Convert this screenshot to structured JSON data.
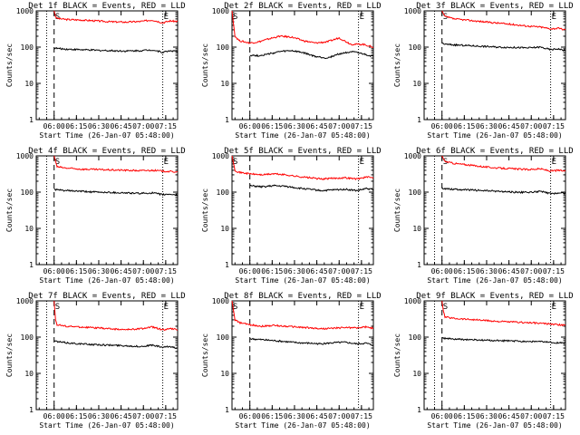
{
  "chart_data": [
    {
      "type": "line",
      "title": "Det 1f BLACK = Events, RED = LLD",
      "xlabel": "Start Time (26-Jan-07 05:48:00)",
      "ylabel": "Counts/sec",
      "y_scale": "log",
      "ylim": [
        1,
        1000
      ],
      "xlim": [
        0,
        95
      ],
      "x_tick_labels": [
        "06:00",
        "06:15",
        "06:30",
        "06:45",
        "07:00",
        "07:15"
      ],
      "y_tick_labels": [
        "1",
        "10",
        "100",
        "1000"
      ],
      "markers": {
        "S": 12,
        "E": 85
      },
      "dotted_lines_min": [
        7,
        85
      ],
      "dashed_line_min": 12,
      "grid": false,
      "legend": "none",
      "series": [
        {
          "color": "#ff0000",
          "x": [
            12,
            13,
            14,
            20,
            30,
            40,
            50,
            60,
            70,
            78,
            85,
            90,
            95
          ],
          "values": [
            1000,
            700,
            620,
            580,
            560,
            530,
            500,
            490,
            510,
            560,
            470,
            530,
            510
          ]
        },
        {
          "color": "#000000",
          "x": [
            12,
            14,
            20,
            30,
            40,
            50,
            60,
            70,
            78,
            85,
            90,
            95
          ],
          "values": [
            95,
            92,
            88,
            85,
            82,
            80,
            78,
            80,
            84,
            72,
            80,
            76
          ]
        }
      ]
    },
    {
      "type": "line",
      "title": "Det 2f BLACK = Events, RED = LLD",
      "xlabel": "Start Time (26-Jan-07 05:48:00)",
      "ylabel": "Counts/sec",
      "y_scale": "log",
      "ylim": [
        1,
        1000
      ],
      "xlim": [
        0,
        95
      ],
      "x_tick_labels": [
        "06:00",
        "06:15",
        "06:30",
        "06:45",
        "07:00",
        "07:15"
      ],
      "y_tick_labels": [
        "1",
        "10",
        "100",
        "1000"
      ],
      "markers": {
        "S": 0,
        "E": 85
      },
      "dotted_lines_min": [
        0,
        85
      ],
      "dashed_line_min": 12,
      "grid": false,
      "legend": "none",
      "series": [
        {
          "color": "#ff0000",
          "x": [
            0,
            2,
            5,
            12,
            18,
            25,
            32,
            40,
            48,
            56,
            64,
            72,
            80,
            88,
            95
          ],
          "values": [
            1000,
            200,
            150,
            130,
            140,
            170,
            200,
            190,
            150,
            130,
            140,
            180,
            120,
            120,
            100
          ]
        },
        {
          "color": "#000000",
          "x": [
            12,
            18,
            25,
            32,
            40,
            48,
            56,
            64,
            72,
            80,
            88,
            95
          ],
          "values": [
            60,
            58,
            65,
            75,
            80,
            70,
            55,
            50,
            65,
            75,
            65,
            55
          ]
        }
      ]
    },
    {
      "type": "line",
      "title": "Det 3f BLACK = Events, RED = LLD",
      "xlabel": "Start Time (26-Jan-07 05:48:00)",
      "ylabel": "Counts/sec",
      "y_scale": "log",
      "ylim": [
        1,
        1000
      ],
      "xlim": [
        0,
        95
      ],
      "x_tick_labels": [
        "06:00",
        "06:15",
        "06:30",
        "06:45",
        "07:00",
        "07:15"
      ],
      "y_tick_labels": [
        "1",
        "10",
        "100",
        "1000"
      ],
      "markers": {
        "S": 12,
        "E": 85
      },
      "dotted_lines_min": [
        7,
        85
      ],
      "dashed_line_min": 12,
      "grid": false,
      "legend": "none",
      "series": [
        {
          "color": "#ff0000",
          "x": [
            12,
            14,
            20,
            30,
            40,
            50,
            60,
            70,
            78,
            85,
            90,
            95
          ],
          "values": [
            1000,
            700,
            600,
            550,
            500,
            460,
            420,
            380,
            360,
            320,
            330,
            300
          ]
        },
        {
          "color": "#000000",
          "x": [
            12,
            14,
            20,
            30,
            40,
            50,
            60,
            70,
            78,
            85,
            90,
            95
          ],
          "values": [
            130,
            120,
            115,
            110,
            105,
            100,
            98,
            95,
            100,
            85,
            90,
            80
          ]
        }
      ]
    },
    {
      "type": "line",
      "title": "Det 4f BLACK = Events, RED = LLD",
      "xlabel": "Start Time (26-Jan-07 05:48:00)",
      "ylabel": "Counts/sec",
      "y_scale": "log",
      "ylim": [
        1,
        1000
      ],
      "xlim": [
        0,
        95
      ],
      "x_tick_labels": [
        "06:00",
        "06:15",
        "06:30",
        "06:45",
        "07:00",
        "07:15"
      ],
      "y_tick_labels": [
        "1",
        "10",
        "100",
        "1000"
      ],
      "markers": {
        "S": 12,
        "E": 85
      },
      "dotted_lines_min": [
        7,
        85
      ],
      "dashed_line_min": 12,
      "grid": false,
      "legend": "none",
      "series": [
        {
          "color": "#ff0000",
          "x": [
            12,
            14,
            20,
            30,
            40,
            50,
            60,
            70,
            78,
            85,
            90,
            95
          ],
          "values": [
            1000,
            500,
            460,
            430,
            420,
            410,
            400,
            390,
            400,
            380,
            370,
            360
          ]
        },
        {
          "color": "#000000",
          "x": [
            12,
            14,
            20,
            30,
            40,
            50,
            60,
            70,
            78,
            85,
            90,
            95
          ],
          "values": [
            120,
            115,
            110,
            105,
            100,
            98,
            95,
            92,
            95,
            85,
            88,
            82
          ]
        }
      ]
    },
    {
      "type": "line",
      "title": "Det 5f BLACK = Events, RED = LLD",
      "xlabel": "Start Time (26-Jan-07 05:48:00)",
      "ylabel": "Counts/sec",
      "y_scale": "log",
      "ylim": [
        1,
        1000
      ],
      "xlim": [
        0,
        95
      ],
      "x_tick_labels": [
        "06:00",
        "06:15",
        "06:30",
        "06:45",
        "07:00",
        "07:15"
      ],
      "y_tick_labels": [
        "1",
        "10",
        "100",
        "1000"
      ],
      "markers": {
        "S": 0,
        "E": 85
      },
      "dotted_lines_min": [
        0,
        85
      ],
      "dashed_line_min": 12,
      "grid": false,
      "legend": "none",
      "series": [
        {
          "color": "#ff0000",
          "x": [
            0,
            2,
            5,
            12,
            20,
            28,
            36,
            44,
            52,
            60,
            68,
            76,
            84,
            90,
            95
          ],
          "values": [
            1000,
            400,
            350,
            320,
            300,
            320,
            300,
            270,
            250,
            230,
            240,
            250,
            230,
            260,
            250
          ]
        },
        {
          "color": "#000000",
          "x": [
            12,
            20,
            28,
            36,
            44,
            52,
            60,
            68,
            76,
            84,
            90,
            95
          ],
          "values": [
            150,
            140,
            150,
            145,
            130,
            120,
            110,
            115,
            120,
            110,
            125,
            120
          ]
        }
      ]
    },
    {
      "type": "line",
      "title": "Det 6f BLACK = Events, RED = LLD",
      "xlabel": "Start Time (26-Jan-07 05:48:00)",
      "ylabel": "Counts/sec",
      "y_scale": "log",
      "ylim": [
        1,
        1000
      ],
      "xlim": [
        0,
        95
      ],
      "x_tick_labels": [
        "06:00",
        "06:15",
        "06:30",
        "06:45",
        "07:00",
        "07:15"
      ],
      "y_tick_labels": [
        "1",
        "10",
        "100",
        "1000"
      ],
      "markers": {
        "S": 12,
        "E": 85
      },
      "dotted_lines_min": [
        7,
        85
      ],
      "dashed_line_min": 12,
      "grid": false,
      "legend": "none",
      "series": [
        {
          "color": "#ff0000",
          "x": [
            12,
            14,
            20,
            30,
            40,
            50,
            60,
            70,
            78,
            85,
            90,
            95
          ],
          "values": [
            1000,
            700,
            620,
            560,
            500,
            460,
            440,
            420,
            440,
            380,
            400,
            380
          ]
        },
        {
          "color": "#000000",
          "x": [
            12,
            14,
            20,
            30,
            40,
            50,
            60,
            70,
            78,
            85,
            90,
            95
          ],
          "values": [
            130,
            125,
            120,
            115,
            110,
            105,
            100,
            98,
            105,
            90,
            95,
            92
          ]
        }
      ]
    },
    {
      "type": "line",
      "title": "Det 7f BLACK = Events, RED = LLD",
      "xlabel": "Start Time (26-Jan-07 05:48:00)",
      "ylabel": "Counts/sec",
      "y_scale": "log",
      "ylim": [
        1,
        1000
      ],
      "xlim": [
        0,
        95
      ],
      "x_tick_labels": [
        "06:00",
        "06:15",
        "06:30",
        "06:45",
        "07:00",
        "07:15"
      ],
      "y_tick_labels": [
        "1",
        "10",
        "100",
        "1000"
      ],
      "markers": {
        "S": 12,
        "E": 85
      },
      "dotted_lines_min": [
        7,
        85
      ],
      "dashed_line_min": 12,
      "grid": false,
      "legend": "none",
      "series": [
        {
          "color": "#ff0000",
          "x": [
            12,
            13,
            14,
            20,
            30,
            40,
            50,
            60,
            70,
            78,
            85,
            90,
            95
          ],
          "values": [
            1000,
            300,
            220,
            200,
            190,
            180,
            170,
            160,
            170,
            190,
            160,
            170,
            160
          ]
        },
        {
          "color": "#000000",
          "x": [
            12,
            14,
            20,
            30,
            40,
            50,
            60,
            70,
            78,
            85,
            90,
            95
          ],
          "values": [
            80,
            75,
            70,
            65,
            62,
            60,
            58,
            55,
            60,
            52,
            55,
            50
          ]
        }
      ]
    },
    {
      "type": "line",
      "title": "Det 8f BLACK = Events, RED = LLD",
      "xlabel": "Start Time (26-Jan-07 05:48:00)",
      "ylabel": "Counts/sec",
      "y_scale": "log",
      "ylim": [
        1,
        1000
      ],
      "xlim": [
        0,
        95
      ],
      "x_tick_labels": [
        "06:00",
        "06:15",
        "06:30",
        "06:45",
        "07:00",
        "07:15"
      ],
      "y_tick_labels": [
        "1",
        "10",
        "100",
        "1000"
      ],
      "markers": {
        "S": 0,
        "E": 85
      },
      "dotted_lines_min": [
        0,
        85
      ],
      "dashed_line_min": 12,
      "grid": false,
      "legend": "none",
      "series": [
        {
          "color": "#ff0000",
          "x": [
            0,
            2,
            5,
            12,
            20,
            28,
            36,
            44,
            52,
            60,
            68,
            76,
            84,
            90,
            95
          ],
          "values": [
            1000,
            300,
            250,
            220,
            200,
            210,
            200,
            190,
            180,
            170,
            175,
            185,
            180,
            190,
            175
          ]
        },
        {
          "color": "#000000",
          "x": [
            12,
            20,
            28,
            36,
            44,
            52,
            60,
            68,
            76,
            84,
            90,
            95
          ],
          "values": [
            90,
            85,
            80,
            75,
            70,
            68,
            65,
            70,
            72,
            65,
            68,
            60
          ]
        }
      ]
    },
    {
      "type": "line",
      "title": "Det 9f BLACK = Events, RED = LLD",
      "xlabel": "Start Time (26-Jan-07 05:48:00)",
      "ylabel": "Counts/sec",
      "y_scale": "log",
      "ylim": [
        1,
        1000
      ],
      "xlim": [
        0,
        95
      ],
      "x_tick_labels": [
        "06:00",
        "06:15",
        "06:30",
        "06:45",
        "07:00",
        "07:15"
      ],
      "y_tick_labels": [
        "1",
        "10",
        "100",
        "1000"
      ],
      "markers": {
        "S": 12,
        "E": 85
      },
      "dotted_lines_min": [
        7,
        85
      ],
      "dashed_line_min": 12,
      "grid": false,
      "legend": "none",
      "series": [
        {
          "color": "#ff0000",
          "x": [
            12,
            13,
            14,
            20,
            30,
            40,
            50,
            60,
            70,
            78,
            85,
            90,
            95
          ],
          "values": [
            1000,
            500,
            360,
            330,
            310,
            290,
            270,
            260,
            250,
            240,
            230,
            220,
            210
          ]
        },
        {
          "color": "#000000",
          "x": [
            12,
            14,
            20,
            30,
            40,
            50,
            60,
            70,
            78,
            85,
            90,
            95
          ],
          "values": [
            95,
            92,
            88,
            85,
            82,
            80,
            78,
            76,
            75,
            72,
            70,
            68
          ]
        }
      ]
    }
  ]
}
